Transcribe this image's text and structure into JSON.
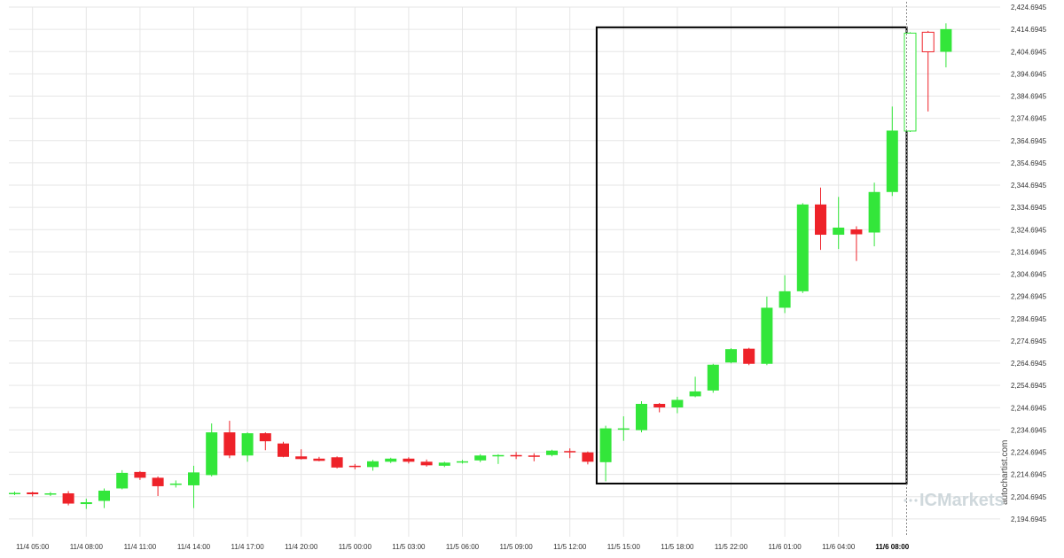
{
  "chart_data": {
    "type": "candlestick",
    "title": "",
    "xlabel": "",
    "ylabel": "",
    "grid": true,
    "ylim": [
      2186.6945,
      2424.6945
    ],
    "y_ticks": [
      "2,194.6945",
      "2,204.6945",
      "2,214.6945",
      "2,224.6945",
      "2,234.6945",
      "2,244.6945",
      "2,254.6945",
      "2,264.6945",
      "2,274.6945",
      "2,284.6945",
      "2,294.6945",
      "2,304.6945",
      "2,314.6945",
      "2,324.6945",
      "2,334.6945",
      "2,344.6945",
      "2,354.6945",
      "2,364.6945",
      "2,374.6945",
      "2,384.6945",
      "2,394.6945",
      "2,404.6945",
      "2,414.6945",
      "2,424.6945"
    ],
    "x_ticks": [
      {
        "label": "11/4 05:00",
        "index": 1
      },
      {
        "label": "11/4 08:00",
        "index": 4
      },
      {
        "label": "11/4 11:00",
        "index": 7
      },
      {
        "label": "11/4 14:00",
        "index": 10
      },
      {
        "label": "11/4 17:00",
        "index": 13
      },
      {
        "label": "11/4 20:00",
        "index": 16
      },
      {
        "label": "11/5 00:00",
        "index": 19
      },
      {
        "label": "11/5 03:00",
        "index": 22
      },
      {
        "label": "11/5 06:00",
        "index": 25
      },
      {
        "label": "11/5 09:00",
        "index": 28
      },
      {
        "label": "11/5 12:00",
        "index": 31
      },
      {
        "label": "11/5 15:00",
        "index": 34
      },
      {
        "label": "11/5 18:00",
        "index": 37
      },
      {
        "label": "11/5 22:00",
        "index": 40
      },
      {
        "label": "11/6 01:00",
        "index": 43
      },
      {
        "label": "11/6 04:00",
        "index": 46
      },
      {
        "label": "11/6 08:00",
        "index": 49,
        "bold": true
      }
    ],
    "candles": [
      {
        "o": 2206.2,
        "h": 2207.0,
        "l": 2205.4,
        "c": 2206.4
      },
      {
        "o": 2206.6,
        "h": 2207.0,
        "l": 2204.8,
        "c": 2205.8
      },
      {
        "o": 2205.8,
        "h": 2206.8,
        "l": 2205.0,
        "c": 2206.2
      },
      {
        "o": 2206.2,
        "h": 2207.2,
        "l": 2200.8,
        "c": 2201.6
      },
      {
        "o": 2201.4,
        "h": 2203.8,
        "l": 2199.2,
        "c": 2202.2
      },
      {
        "o": 2202.8,
        "h": 2208.4,
        "l": 2199.6,
        "c": 2207.4
      },
      {
        "o": 2208.4,
        "h": 2216.6,
        "l": 2208.0,
        "c": 2215.4
      },
      {
        "o": 2215.8,
        "h": 2216.2,
        "l": 2212.2,
        "c": 2213.2
      },
      {
        "o": 2213.2,
        "h": 2213.8,
        "l": 2205.0,
        "c": 2209.4
      },
      {
        "o": 2210.0,
        "h": 2212.0,
        "l": 2208.8,
        "c": 2210.6
      },
      {
        "o": 2209.8,
        "h": 2218.6,
        "l": 2199.6,
        "c": 2215.6
      },
      {
        "o": 2214.4,
        "h": 2237.6,
        "l": 2213.8,
        "c": 2233.6
      },
      {
        "o": 2233.6,
        "h": 2238.8,
        "l": 2222.0,
        "c": 2223.2
      },
      {
        "o": 2223.2,
        "h": 2233.6,
        "l": 2220.4,
        "c": 2233.2
      },
      {
        "o": 2233.2,
        "h": 2233.6,
        "l": 2225.6,
        "c": 2229.6
      },
      {
        "o": 2228.6,
        "h": 2229.4,
        "l": 2222.4,
        "c": 2222.6
      },
      {
        "o": 2222.8,
        "h": 2226.0,
        "l": 2221.4,
        "c": 2221.6
      },
      {
        "o": 2221.8,
        "h": 2222.6,
        "l": 2220.6,
        "c": 2220.8
      },
      {
        "o": 2222.4,
        "h": 2222.8,
        "l": 2217.4,
        "c": 2217.8
      },
      {
        "o": 2218.6,
        "h": 2219.4,
        "l": 2217.0,
        "c": 2218.0
      },
      {
        "o": 2218.0,
        "h": 2221.2,
        "l": 2216.4,
        "c": 2220.6
      },
      {
        "o": 2220.4,
        "h": 2222.2,
        "l": 2219.8,
        "c": 2221.8
      },
      {
        "o": 2221.8,
        "h": 2222.4,
        "l": 2219.6,
        "c": 2220.4
      },
      {
        "o": 2220.4,
        "h": 2221.4,
        "l": 2218.2,
        "c": 2218.8
      },
      {
        "o": 2218.6,
        "h": 2220.4,
        "l": 2218.0,
        "c": 2220.0
      },
      {
        "o": 2220.0,
        "h": 2221.2,
        "l": 2219.6,
        "c": 2220.6
      },
      {
        "o": 2221.0,
        "h": 2223.8,
        "l": 2220.2,
        "c": 2223.2
      },
      {
        "o": 2223.2,
        "h": 2223.8,
        "l": 2219.4,
        "c": 2223.4
      },
      {
        "o": 2223.4,
        "h": 2224.8,
        "l": 2221.6,
        "c": 2222.8
      },
      {
        "o": 2223.2,
        "h": 2224.2,
        "l": 2220.6,
        "c": 2222.6
      },
      {
        "o": 2223.4,
        "h": 2225.8,
        "l": 2222.8,
        "c": 2225.4
      },
      {
        "o": 2225.2,
        "h": 2226.4,
        "l": 2222.0,
        "c": 2224.6
      },
      {
        "o": 2224.6,
        "h": 2225.0,
        "l": 2219.2,
        "c": 2220.4
      },
      {
        "o": 2220.2,
        "h": 2236.6,
        "l": 2211.6,
        "c": 2235.4
      },
      {
        "o": 2235.2,
        "h": 2240.8,
        "l": 2229.8,
        "c": 2235.4
      },
      {
        "o": 2234.6,
        "h": 2247.6,
        "l": 2233.6,
        "c": 2246.4
      },
      {
        "o": 2246.4,
        "h": 2246.8,
        "l": 2242.6,
        "c": 2244.8
      },
      {
        "o": 2244.8,
        "h": 2249.6,
        "l": 2242.2,
        "c": 2248.2
      },
      {
        "o": 2249.8,
        "h": 2258.6,
        "l": 2249.4,
        "c": 2252.0
      },
      {
        "o": 2252.4,
        "h": 2264.4,
        "l": 2251.4,
        "c": 2264.0
      },
      {
        "o": 2265.0,
        "h": 2271.4,
        "l": 2264.6,
        "c": 2271.0
      },
      {
        "o": 2271.2,
        "h": 2271.6,
        "l": 2263.8,
        "c": 2264.4
      },
      {
        "o": 2264.4,
        "h": 2294.6,
        "l": 2263.8,
        "c": 2289.6
      },
      {
        "o": 2289.6,
        "h": 2304.2,
        "l": 2287.2,
        "c": 2297.0
      },
      {
        "o": 2297.0,
        "h": 2336.6,
        "l": 2296.2,
        "c": 2336.0
      },
      {
        "o": 2336.0,
        "h": 2343.6,
        "l": 2315.6,
        "c": 2322.4
      },
      {
        "o": 2322.4,
        "h": 2339.4,
        "l": 2316.0,
        "c": 2325.6
      },
      {
        "o": 2324.8,
        "h": 2326.2,
        "l": 2310.6,
        "c": 2322.6
      },
      {
        "o": 2323.4,
        "h": 2345.8,
        "l": 2317.2,
        "c": 2341.6
      },
      {
        "o": 2341.6,
        "h": 2380.0,
        "l": 2339.8,
        "c": 2369.2
      },
      {
        "o": 2369.0,
        "h": 2413.4,
        "l": 2368.6,
        "c": 2413.0
      },
      {
        "o": 2413.4,
        "h": 2414.0,
        "l": 2377.8,
        "c": 2404.6
      },
      {
        "o": 2404.6,
        "h": 2417.4,
        "l": 2397.6,
        "c": 2414.8
      }
    ],
    "hollow_indices": [
      50,
      51
    ],
    "pattern_box": {
      "start_index": 32,
      "end_index": 50,
      "low": 2210.6,
      "high": 2415.6
    },
    "current_index": 50,
    "colors": {
      "up": "#33e63a",
      "down": "#ee2229",
      "box": "#000000",
      "grid": "#e6e6e6"
    }
  },
  "watermark": {
    "vertical_text": "autochartist.com",
    "brand": "ICMarkets"
  }
}
